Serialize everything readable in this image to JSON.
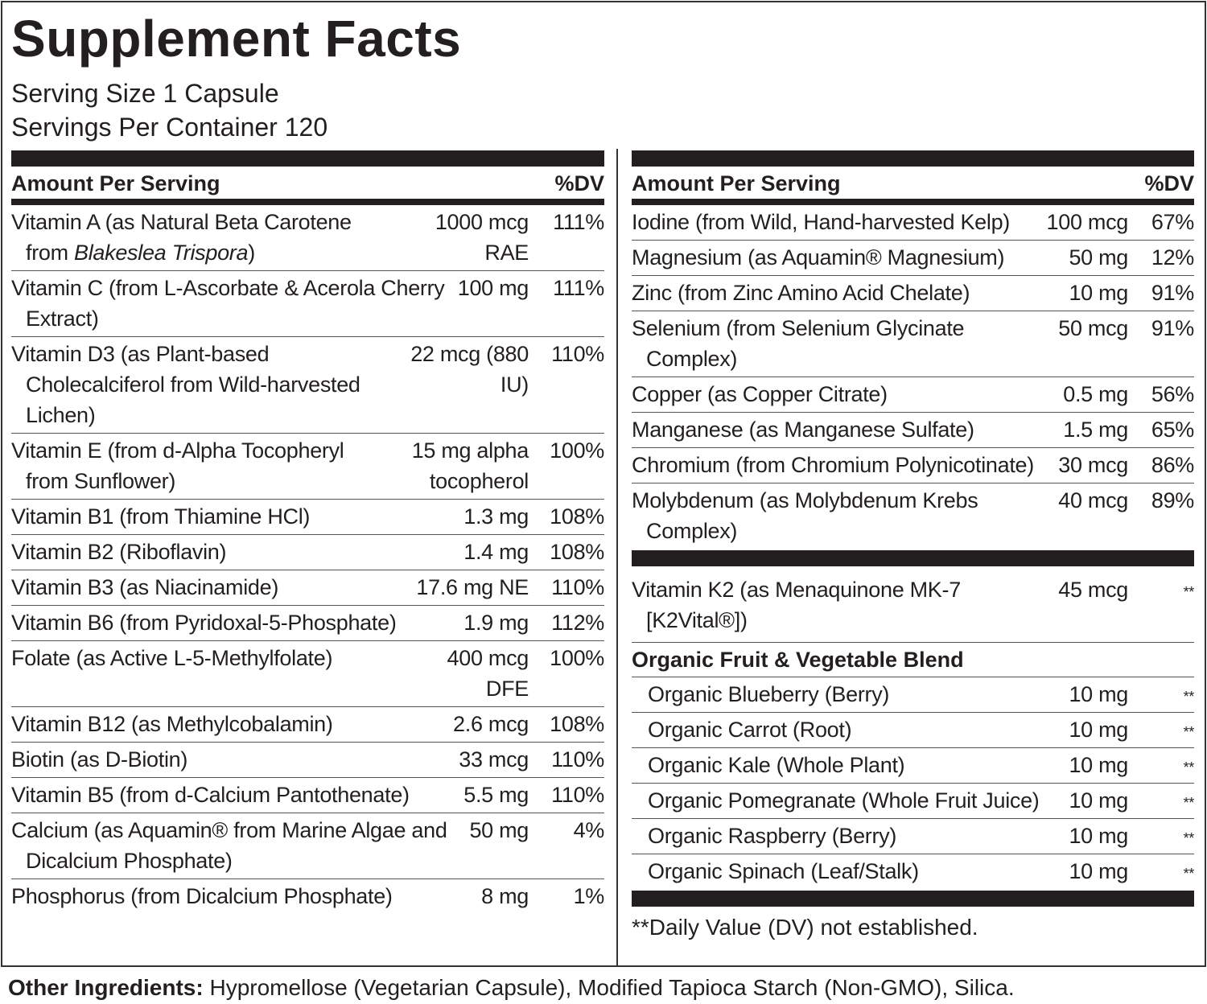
{
  "title": "Supplement Facts",
  "serving_size": "Serving Size 1 Capsule",
  "servings_per_container": "Servings Per Container 120",
  "left_table": {
    "header": {
      "amount": "Amount Per Serving",
      "dv": "%DV"
    },
    "rows": [
      {
        "name": "Vitamin A (as Natural Beta Carotene from",
        "name_italic": "Blakeslea Trispora",
        "name_tail": ")",
        "amount": "1000 mcg RAE",
        "dv": "111%"
      },
      {
        "name": "Vitamin C (from L-Ascorbate & Acerola Cherry Extract)",
        "amount": "100 mg",
        "dv": "111%"
      },
      {
        "name": "Vitamin D3 (as Plant-based Cholecalciferol from Wild-harvested Lichen)",
        "amount": "22 mcg (880 IU)",
        "dv": "110%"
      },
      {
        "name": "Vitamin E (from d-Alpha Tocopheryl from Sunflower)",
        "amount": "15 mg alpha tocopherol",
        "dv": "100%"
      },
      {
        "name": "Vitamin B1 (from Thiamine HCl)",
        "amount": "1.3 mg",
        "dv": "108%"
      },
      {
        "name": "Vitamin B2 (Riboflavin)",
        "amount": "1.4 mg",
        "dv": "108%"
      },
      {
        "name": "Vitamin B3 (as Niacinamide)",
        "amount": "17.6 mg NE",
        "dv": "110%"
      },
      {
        "name": "Vitamin B6 (from Pyridoxal-5-Phosphate)",
        "amount": "1.9 mg",
        "dv": "112%"
      },
      {
        "name": "Folate (as Active L-5-Methylfolate)",
        "amount": "400 mcg DFE",
        "dv": "100%"
      },
      {
        "name": "Vitamin B12 (as Methylcobalamin)",
        "amount": "2.6 mcg",
        "dv": "108%"
      },
      {
        "name": "Biotin (as D-Biotin)",
        "amount": "33 mcg",
        "dv": "110%"
      },
      {
        "name": "Vitamin B5 (from d-Calcium Pantothenate)",
        "amount": "5.5 mg",
        "dv": "110%"
      },
      {
        "name": "Calcium (as Aquamin® from Marine Algae and Dicalcium Phosphate)",
        "amount": "50 mg",
        "dv": "4%"
      },
      {
        "name": "Phosphorus (from Dicalcium Phosphate)",
        "amount": "8 mg",
        "dv": "1%"
      }
    ]
  },
  "right_table": {
    "header": {
      "amount": "Amount Per Serving",
      "dv": "%DV"
    },
    "rows": [
      {
        "name": "Iodine (from Wild, Hand-harvested Kelp)",
        "amount": "100 mcg",
        "dv": "67%"
      },
      {
        "name": "Magnesium (as Aquamin® Magnesium)",
        "amount": "50 mg",
        "dv": "12%"
      },
      {
        "name": "Zinc (from Zinc Amino Acid Chelate)",
        "amount": "10 mg",
        "dv": "91%"
      },
      {
        "name": "Selenium (from Selenium Glycinate Complex)",
        "amount": "50 mcg",
        "dv": "91%"
      },
      {
        "name": "Copper (as Copper Citrate)",
        "amount": "0.5 mg",
        "dv": "56%"
      },
      {
        "name": "Manganese (as Manganese Sulfate)",
        "amount": "1.5 mg",
        "dv": "65%"
      },
      {
        "name": "Chromium (from Chromium Polynicotinate)",
        "amount": "30 mcg",
        "dv": "86%"
      },
      {
        "name": "Molybdenum (as Molybdenum Krebs Complex)",
        "amount": "40 mcg",
        "dv": "89%"
      }
    ],
    "extra_rows": [
      {
        "name": "Vitamin K2 (as Menaquinone MK-7 [K2Vital®])",
        "amount": "45 mcg",
        "dv": "**"
      }
    ],
    "blend": {
      "title": "Organic Fruit & Vegetable Blend",
      "rows": [
        {
          "name": "Organic Blueberry (Berry)",
          "amount": "10 mg",
          "dv": "**"
        },
        {
          "name": "Organic Carrot (Root)",
          "amount": "10 mg",
          "dv": "**"
        },
        {
          "name": "Organic Kale (Whole Plant)",
          "amount": "10 mg",
          "dv": "**"
        },
        {
          "name": "Organic Pomegranate (Whole Fruit Juice)",
          "amount": "10 mg",
          "dv": "**"
        },
        {
          "name": "Organic Raspberry (Berry)",
          "amount": "10 mg",
          "dv": "**"
        },
        {
          "name": "Organic Spinach (Leaf/Stalk)",
          "amount": "10 mg",
          "dv": "**"
        }
      ]
    },
    "footnote": "**Daily Value (DV) not established."
  },
  "other_ingredients": {
    "label": "Other Ingredients:",
    "text": "Hypromellose (Vegetarian Capsule), Modified Tapioca Starch (Non-GMO), Silica."
  }
}
